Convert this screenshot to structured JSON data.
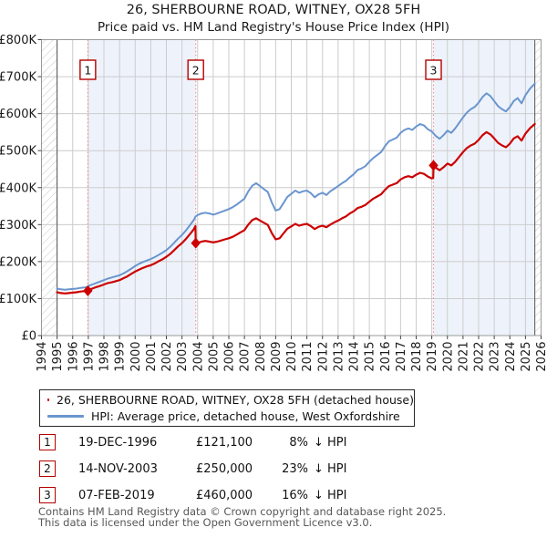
{
  "title": "26, SHERBOURNE ROAD, WITNEY, OX28 5FH",
  "subtitle": "Price paid vs. HM Land Registry's House Price Index (HPI)",
  "legend": [
    {
      "label": "26, SHERBOURNE ROAD, WITNEY, OX28 5FH (detached house)",
      "color": "#cc0000"
    },
    {
      "label": "HPI: Average price, detached house, West Oxfordshire",
      "color": "#6a95cf"
    }
  ],
  "table": {
    "rows": [
      {
        "num": "1",
        "date": "19-DEC-1996",
        "price": "£121,100",
        "pct": "8%",
        "rel": "↓ HPI"
      },
      {
        "num": "2",
        "date": "14-NOV-2003",
        "price": "£250,000",
        "pct": "23%",
        "rel": "↓ HPI"
      },
      {
        "num": "3",
        "date": "07-FEB-2019",
        "price": "£460,000",
        "pct": "16%",
        "rel": "↓ HPI"
      }
    ]
  },
  "footer": {
    "line1": "Contains HM Land Registry data © Crown copyright and database right 2025.",
    "line2": "This data is licensed under the Open Government Licence v3.0."
  },
  "chart_data": {
    "type": "line",
    "x_min": 1994,
    "x_max": 2026,
    "y_max_thousands": 800,
    "unit": "GBP thousands",
    "y_tick_labels": [
      "£0",
      "£100K",
      "£200K",
      "£300K",
      "£400K",
      "£500K",
      "£600K",
      "£700K",
      "£800K"
    ],
    "x_tick_years": [
      1994,
      1995,
      1996,
      1997,
      1998,
      1999,
      2000,
      2001,
      2002,
      2003,
      2004,
      2005,
      2006,
      2007,
      2008,
      2009,
      2010,
      2011,
      2012,
      2013,
      2014,
      2015,
      2016,
      2017,
      2018,
      2019,
      2020,
      2021,
      2022,
      2023,
      2024,
      2025,
      2026
    ],
    "series": [
      {
        "name": "26, SHERBOURNE ROAD, WITNEY, OX28 5FH (detached house)",
        "color": "#cc0000",
        "points": [
          [
            1995.0,
            117
          ],
          [
            1995.25,
            115
          ],
          [
            1995.5,
            114
          ],
          [
            1995.75,
            115
          ],
          [
            1996.0,
            116
          ],
          [
            1996.25,
            117
          ],
          [
            1996.5,
            119
          ],
          [
            1996.75,
            120
          ],
          [
            1996.97,
            121.1
          ],
          [
            1997.0,
            123
          ],
          [
            1997.25,
            127
          ],
          [
            1997.5,
            131
          ],
          [
            1997.75,
            134
          ],
          [
            1998.0,
            138
          ],
          [
            1998.25,
            142
          ],
          [
            1998.5,
            144
          ],
          [
            1998.75,
            147
          ],
          [
            1999.0,
            150
          ],
          [
            1999.25,
            155
          ],
          [
            1999.5,
            160
          ],
          [
            1999.75,
            167
          ],
          [
            2000.0,
            173
          ],
          [
            2000.25,
            178
          ],
          [
            2000.5,
            183
          ],
          [
            2000.75,
            187
          ],
          [
            2001.0,
            190
          ],
          [
            2001.25,
            195
          ],
          [
            2001.5,
            201
          ],
          [
            2001.75,
            206
          ],
          [
            2002.0,
            213
          ],
          [
            2002.25,
            221
          ],
          [
            2002.5,
            231
          ],
          [
            2002.75,
            241
          ],
          [
            2003.0,
            250
          ],
          [
            2003.25,
            261
          ],
          [
            2003.5,
            274
          ],
          [
            2003.75,
            287
          ],
          [
            2003.86,
            296
          ],
          [
            2003.88,
            250
          ],
          [
            2004.0,
            251
          ],
          [
            2004.25,
            254
          ],
          [
            2004.5,
            256
          ],
          [
            2004.75,
            254
          ],
          [
            2005.0,
            252
          ],
          [
            2005.25,
            254
          ],
          [
            2005.5,
            257
          ],
          [
            2005.75,
            260
          ],
          [
            2006.0,
            263
          ],
          [
            2006.25,
            267
          ],
          [
            2006.5,
            273
          ],
          [
            2006.75,
            279
          ],
          [
            2007.0,
            285
          ],
          [
            2007.25,
            300
          ],
          [
            2007.5,
            312
          ],
          [
            2007.75,
            317
          ],
          [
            2008.0,
            311
          ],
          [
            2008.25,
            305
          ],
          [
            2008.5,
            299
          ],
          [
            2008.75,
            277
          ],
          [
            2009.0,
            260
          ],
          [
            2009.25,
            263
          ],
          [
            2009.5,
            276
          ],
          [
            2009.75,
            289
          ],
          [
            2010.0,
            295
          ],
          [
            2010.25,
            302
          ],
          [
            2010.5,
            297
          ],
          [
            2010.75,
            300
          ],
          [
            2011.0,
            302
          ],
          [
            2011.25,
            296
          ],
          [
            2011.5,
            288
          ],
          [
            2011.75,
            294
          ],
          [
            2012.0,
            297
          ],
          [
            2012.25,
            293
          ],
          [
            2012.5,
            300
          ],
          [
            2012.75,
            306
          ],
          [
            2013.0,
            311
          ],
          [
            2013.25,
            317
          ],
          [
            2013.5,
            322
          ],
          [
            2013.75,
            330
          ],
          [
            2014.0,
            336
          ],
          [
            2014.25,
            345
          ],
          [
            2014.5,
            348
          ],
          [
            2014.75,
            353
          ],
          [
            2015.0,
            362
          ],
          [
            2015.25,
            370
          ],
          [
            2015.5,
            376
          ],
          [
            2015.75,
            382
          ],
          [
            2016.0,
            394
          ],
          [
            2016.25,
            404
          ],
          [
            2016.5,
            408
          ],
          [
            2016.75,
            412
          ],
          [
            2017.0,
            422
          ],
          [
            2017.25,
            428
          ],
          [
            2017.5,
            431
          ],
          [
            2017.75,
            428
          ],
          [
            2018.0,
            435
          ],
          [
            2018.25,
            440
          ],
          [
            2018.5,
            437
          ],
          [
            2018.75,
            430
          ],
          [
            2019.0,
            425
          ],
          [
            2019.09,
            426
          ],
          [
            2019.11,
            460
          ],
          [
            2019.25,
            454
          ],
          [
            2019.5,
            447
          ],
          [
            2019.75,
            455
          ],
          [
            2020.0,
            465
          ],
          [
            2020.25,
            460
          ],
          [
            2020.5,
            470
          ],
          [
            2020.75,
            483
          ],
          [
            2021.0,
            496
          ],
          [
            2021.25,
            507
          ],
          [
            2021.5,
            514
          ],
          [
            2021.75,
            519
          ],
          [
            2022.0,
            529
          ],
          [
            2022.25,
            542
          ],
          [
            2022.5,
            550
          ],
          [
            2022.75,
            544
          ],
          [
            2023.0,
            533
          ],
          [
            2023.25,
            521
          ],
          [
            2023.5,
            514
          ],
          [
            2023.75,
            509
          ],
          [
            2024.0,
            519
          ],
          [
            2024.25,
            533
          ],
          [
            2024.5,
            539
          ],
          [
            2024.75,
            527
          ],
          [
            2025.0,
            546
          ],
          [
            2025.3,
            561
          ],
          [
            2025.6,
            572
          ]
        ]
      },
      {
        "name": "HPI: Average price, detached house, West Oxfordshire",
        "color": "#6a95cf",
        "points": [
          [
            1995.0,
            127
          ],
          [
            1995.25,
            125
          ],
          [
            1995.5,
            124
          ],
          [
            1995.75,
            125
          ],
          [
            1996.0,
            126
          ],
          [
            1996.25,
            127
          ],
          [
            1996.5,
            129
          ],
          [
            1996.75,
            130
          ],
          [
            1996.97,
            131.6
          ],
          [
            1997.0,
            134
          ],
          [
            1997.25,
            138
          ],
          [
            1997.5,
            142
          ],
          [
            1997.75,
            146
          ],
          [
            1998.0,
            150
          ],
          [
            1998.25,
            154
          ],
          [
            1998.5,
            157
          ],
          [
            1998.75,
            160
          ],
          [
            1999.0,
            163
          ],
          [
            1999.25,
            168
          ],
          [
            1999.5,
            174
          ],
          [
            1999.75,
            181
          ],
          [
            2000.0,
            188
          ],
          [
            2000.25,
            194
          ],
          [
            2000.5,
            199
          ],
          [
            2000.75,
            203
          ],
          [
            2001.0,
            207
          ],
          [
            2001.25,
            212
          ],
          [
            2001.5,
            218
          ],
          [
            2001.75,
            224
          ],
          [
            2002.0,
            231
          ],
          [
            2002.25,
            240
          ],
          [
            2002.5,
            251
          ],
          [
            2002.75,
            262
          ],
          [
            2003.0,
            272
          ],
          [
            2003.25,
            284
          ],
          [
            2003.5,
            298
          ],
          [
            2003.75,
            312
          ],
          [
            2003.87,
            322
          ],
          [
            2004.0,
            326
          ],
          [
            2004.25,
            330
          ],
          [
            2004.5,
            332
          ],
          [
            2004.75,
            330
          ],
          [
            2005.0,
            327
          ],
          [
            2005.25,
            330
          ],
          [
            2005.5,
            334
          ],
          [
            2005.75,
            338
          ],
          [
            2006.0,
            342
          ],
          [
            2006.25,
            347
          ],
          [
            2006.5,
            354
          ],
          [
            2006.75,
            362
          ],
          [
            2007.0,
            370
          ],
          [
            2007.25,
            390
          ],
          [
            2007.5,
            405
          ],
          [
            2007.75,
            412
          ],
          [
            2008.0,
            404
          ],
          [
            2008.25,
            396
          ],
          [
            2008.5,
            388
          ],
          [
            2008.75,
            360
          ],
          [
            2009.0,
            338
          ],
          [
            2009.25,
            342
          ],
          [
            2009.5,
            358
          ],
          [
            2009.75,
            375
          ],
          [
            2010.0,
            383
          ],
          [
            2010.25,
            392
          ],
          [
            2010.5,
            386
          ],
          [
            2010.75,
            390
          ],
          [
            2011.0,
            392
          ],
          [
            2011.25,
            385
          ],
          [
            2011.5,
            374
          ],
          [
            2011.75,
            382
          ],
          [
            2012.0,
            386
          ],
          [
            2012.25,
            380
          ],
          [
            2012.5,
            390
          ],
          [
            2012.75,
            397
          ],
          [
            2013.0,
            404
          ],
          [
            2013.25,
            412
          ],
          [
            2013.5,
            418
          ],
          [
            2013.75,
            428
          ],
          [
            2014.0,
            436
          ],
          [
            2014.25,
            448
          ],
          [
            2014.5,
            452
          ],
          [
            2014.75,
            458
          ],
          [
            2015.0,
            470
          ],
          [
            2015.25,
            480
          ],
          [
            2015.5,
            488
          ],
          [
            2015.75,
            496
          ],
          [
            2016.0,
            512
          ],
          [
            2016.25,
            525
          ],
          [
            2016.5,
            530
          ],
          [
            2016.75,
            535
          ],
          [
            2017.0,
            548
          ],
          [
            2017.25,
            556
          ],
          [
            2017.5,
            560
          ],
          [
            2017.75,
            556
          ],
          [
            2018.0,
            565
          ],
          [
            2018.25,
            572
          ],
          [
            2018.5,
            568
          ],
          [
            2018.75,
            558
          ],
          [
            2019.0,
            552
          ],
          [
            2019.25,
            540
          ],
          [
            2019.5,
            532
          ],
          [
            2019.75,
            542
          ],
          [
            2020.0,
            554
          ],
          [
            2020.25,
            548
          ],
          [
            2020.5,
            560
          ],
          [
            2020.75,
            575
          ],
          [
            2021.0,
            590
          ],
          [
            2021.25,
            603
          ],
          [
            2021.5,
            612
          ],
          [
            2021.75,
            618
          ],
          [
            2022.0,
            630
          ],
          [
            2022.25,
            645
          ],
          [
            2022.5,
            655
          ],
          [
            2022.75,
            648
          ],
          [
            2023.0,
            634
          ],
          [
            2023.25,
            620
          ],
          [
            2023.5,
            612
          ],
          [
            2023.75,
            606
          ],
          [
            2024.0,
            618
          ],
          [
            2024.25,
            634
          ],
          [
            2024.5,
            642
          ],
          [
            2024.75,
            628
          ],
          [
            2025.0,
            650
          ],
          [
            2025.3,
            668
          ],
          [
            2025.6,
            681
          ]
        ]
      }
    ],
    "sale_markers": [
      {
        "label": "1",
        "x": 1996.97,
        "value_thousands": 121.1
      },
      {
        "label": "2",
        "x": 2003.88,
        "value_thousands": 250
      },
      {
        "label": "3",
        "x": 2019.11,
        "value_thousands": 460
      }
    ],
    "shaded_periods": [
      [
        1996.97,
        2003.88
      ],
      [
        2019.11,
        2025.6
      ]
    ],
    "hatched_periods": [
      [
        1994,
        1995
      ],
      [
        2025.6,
        2026
      ]
    ],
    "data_edges": [
      1995,
      2025.6
    ],
    "colors": {
      "shade": "#eef3fb",
      "grid": "#cccccc",
      "frame": "#9a9a9a",
      "dashed": "#f29090",
      "marker_box_border": "#b40000",
      "hatch": "#c6c6c6",
      "data_edge": "#555555",
      "tick_text": "#1a1a1a"
    }
  }
}
